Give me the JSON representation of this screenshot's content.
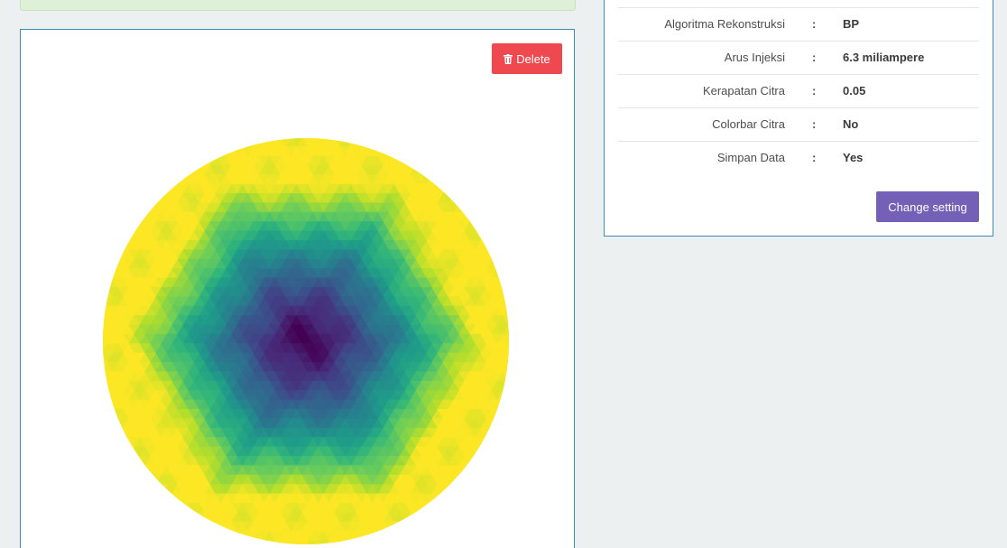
{
  "alert": {
    "color": "#dff0d8"
  },
  "image_panel": {
    "delete_label": "Delete",
    "delete_icon": "trash-icon",
    "delete_color": "#f0484f",
    "plot": {
      "type": "reconstruction-heatmap",
      "colormap": "viridis",
      "shape": "circle",
      "center_value": 0.0,
      "edge_value": 1.0
    }
  },
  "settings": {
    "rows": [
      {
        "label": "Algoritma Rekonstruksi",
        "sep": ":",
        "value": "BP"
      },
      {
        "label": "Arus Injeksi",
        "sep": ":",
        "value": "6.3 miliampere"
      },
      {
        "label": "Kerapatan Citra",
        "sep": ":",
        "value": "0.05"
      },
      {
        "label": "Colorbar Citra",
        "sep": ":",
        "value": "No"
      },
      {
        "label": "Simpan Data",
        "sep": ":",
        "value": "Yes"
      }
    ],
    "change_label": "Change setting",
    "change_color": "#7560b8"
  }
}
